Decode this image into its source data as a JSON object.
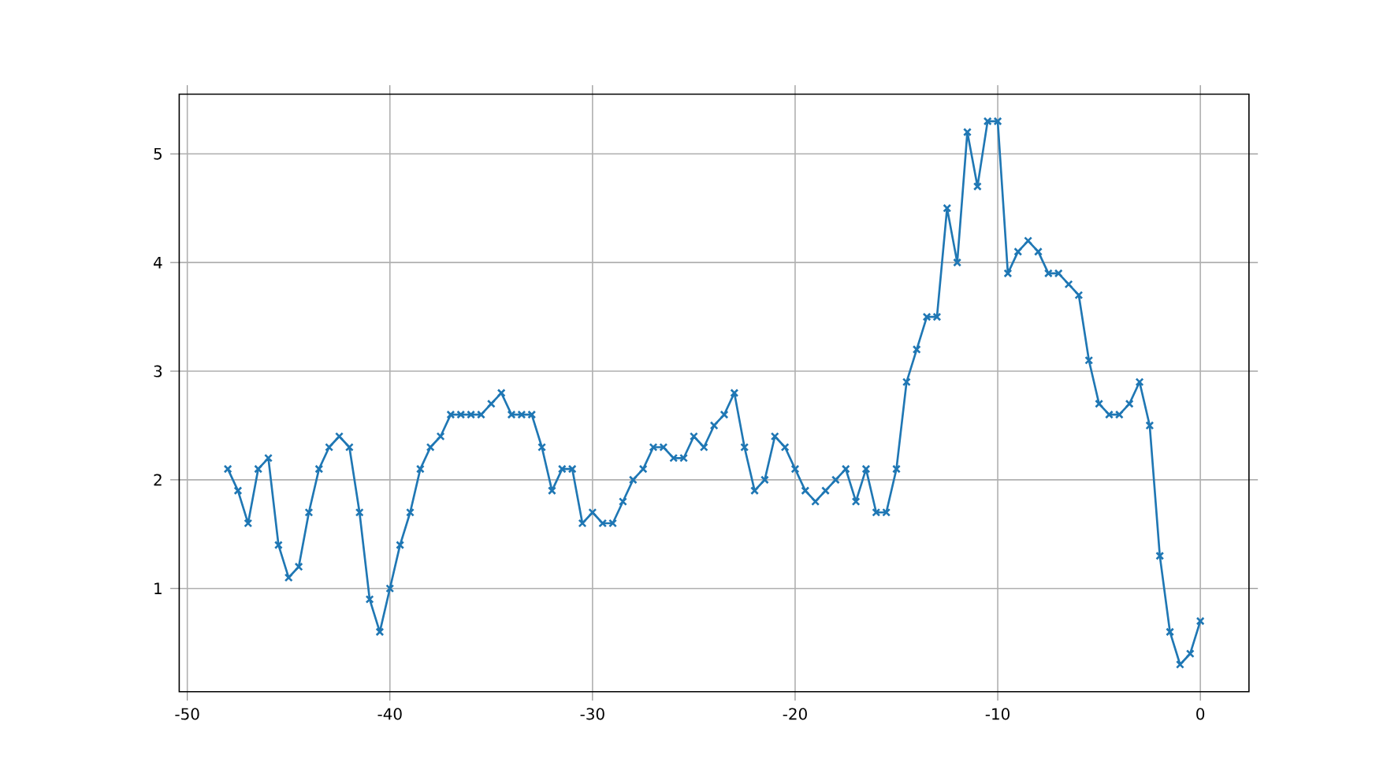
{
  "chart_data": {
    "type": "line",
    "x": [
      -48,
      -47.5,
      -47,
      -46.5,
      -46,
      -45.5,
      -45,
      -44.5,
      -44,
      -43.5,
      -43,
      -42.5,
      -42,
      -41.5,
      -41,
      -40.5,
      -40,
      -39.5,
      -39,
      -38.5,
      -38,
      -37.5,
      -37,
      -36.5,
      -36,
      -35.5,
      -35,
      -34.5,
      -34,
      -33.5,
      -33,
      -32.5,
      -32,
      -31.5,
      -31,
      -30.5,
      -30,
      -29.5,
      -29,
      -28.5,
      -28,
      -27.5,
      -27,
      -26.5,
      -26,
      -25.5,
      -25,
      -24.5,
      -24,
      -23.5,
      -23,
      -22.5,
      -22,
      -21.5,
      -21,
      -20.5,
      -20,
      -19.5,
      -19,
      -18.5,
      -18,
      -17.5,
      -17,
      -16.5,
      -16,
      -15.5,
      -15,
      -14.5,
      -14,
      -13.5,
      -13,
      -12.5,
      -12,
      -11.5,
      -11,
      -10.5,
      -10,
      -9.5,
      -9,
      -8.5,
      -8,
      -7.5,
      -7,
      -6.5,
      -6,
      -5.5,
      -5,
      -4.5,
      -4,
      -3.5,
      -3,
      -2.5,
      -2,
      -1.5,
      -1,
      -0.5,
      0
    ],
    "series": [
      {
        "color": "#1f77b4",
        "values": [
          2.1,
          1.9,
          1.6,
          2.1,
          2.2,
          1.4,
          1.1,
          1.2,
          1.7,
          2.1,
          2.3,
          2.4,
          2.3,
          1.7,
          0.9,
          0.6,
          1.0,
          1.4,
          1.7,
          2.1,
          2.3,
          2.4,
          2.6,
          2.6,
          2.6,
          2.6,
          2.7,
          2.8,
          2.6,
          2.6,
          2.6,
          2.3,
          1.9,
          2.1,
          2.1,
          1.6,
          1.7,
          1.6,
          1.6,
          1.8,
          2.0,
          2.1,
          2.3,
          2.3,
          2.2,
          2.2,
          2.4,
          2.3,
          2.5,
          2.6,
          2.8,
          2.3,
          1.9,
          2.0,
          2.4,
          2.3,
          2.1,
          1.9,
          1.8,
          1.9,
          2.0,
          2.1,
          1.8,
          2.1,
          1.7,
          1.7,
          2.1,
          2.9,
          3.2,
          3.5,
          3.5,
          4.5,
          4.0,
          5.2,
          4.7,
          5.3,
          5.3,
          3.9,
          4.1,
          4.2,
          4.1,
          3.9,
          3.9,
          3.8,
          3.7,
          3.1,
          2.7,
          2.6,
          2.6,
          2.7,
          2.9,
          2.5,
          1.3,
          0.6,
          0.3,
          0.4,
          0.7
        ]
      }
    ],
    "xlim": [
      -50.4,
      2.4
    ],
    "ylim": [
      0.05,
      5.55
    ],
    "xticks": [
      -50,
      -40,
      -30,
      -20,
      -10,
      0
    ],
    "yticks": [
      1,
      2,
      3,
      4,
      5
    ],
    "grid": true,
    "marker": "cross",
    "line_style": "solid"
  }
}
